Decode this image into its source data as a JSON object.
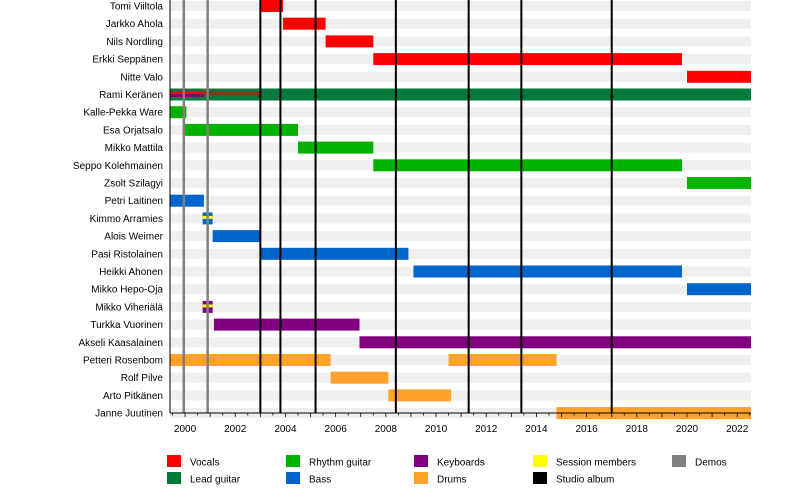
{
  "chart_data": {
    "type": "timeline",
    "x_range": [
      1999.4,
      2022.55
    ],
    "x_ticks": [
      2000,
      2002,
      2004,
      2006,
      2008,
      2010,
      2012,
      2014,
      2016,
      2018,
      2020,
      2022
    ],
    "x_tick_labels": [
      "2000",
      "2002",
      "2004",
      "2006",
      "2008",
      "2010",
      "2012",
      "2014",
      "2016",
      "2018",
      "2020",
      "2022"
    ],
    "colors": {
      "Vocals": "#ff0000",
      "Lead guitar": "#007a3d",
      "Rhythm guitar": "#00b200",
      "Bass": "#0066cc",
      "Keyboards": "#800080",
      "Drums": "#ffa12b",
      "Session members": "#ffff00",
      "Studio album": "#000000",
      "Demos": "#808080"
    },
    "members": [
      {
        "name": "Tomi Viiltola",
        "bars": [
          {
            "role": "Vocals",
            "start": 2003.0,
            "end": 2003.9
          }
        ]
      },
      {
        "name": "Jarkko Ahola",
        "bars": [
          {
            "role": "Vocals",
            "start": 2003.9,
            "end": 2005.6
          }
        ]
      },
      {
        "name": "Nils Nordling",
        "bars": [
          {
            "role": "Vocals",
            "start": 2005.6,
            "end": 2007.5
          }
        ]
      },
      {
        "name": "Erkki Seppänen",
        "bars": [
          {
            "role": "Vocals",
            "start": 2007.5,
            "end": 2019.8
          }
        ]
      },
      {
        "name": "Nitte Valo",
        "bars": [
          {
            "role": "Vocals",
            "start": 2020.0,
            "end": 2022.55
          }
        ]
      },
      {
        "name": "Rami Keränen",
        "bars": [
          {
            "role": "Lead guitar",
            "start": 1999.4,
            "end": 2022.55
          },
          {
            "role": "Vocals",
            "start": 1999.4,
            "end": 2000.75,
            "thin": true
          },
          {
            "role": "Vocals",
            "start": 2000.75,
            "end": 2003.0,
            "thin": true,
            "slim": true
          },
          {
            "role": "Keyboards",
            "start": 1999.4,
            "end": 2000.75,
            "thin": true,
            "offset": 2
          }
        ]
      },
      {
        "name": "Kalle-Pekka Ware",
        "bars": [
          {
            "role": "Rhythm guitar",
            "start": 1999.4,
            "end": 2000.05
          }
        ]
      },
      {
        "name": "Esa Orjatsalo",
        "bars": [
          {
            "role": "Rhythm guitar",
            "start": 1999.95,
            "end": 2004.5
          }
        ]
      },
      {
        "name": "Mikko Mattila",
        "bars": [
          {
            "role": "Rhythm guitar",
            "start": 2004.5,
            "end": 2007.5
          }
        ]
      },
      {
        "name": "Seppo Kolehmainen",
        "bars": [
          {
            "role": "Rhythm guitar",
            "start": 2007.5,
            "end": 2019.8
          }
        ]
      },
      {
        "name": "Zsolt Szilagyi",
        "bars": [
          {
            "role": "Rhythm guitar",
            "start": 2020.0,
            "end": 2022.55
          }
        ]
      },
      {
        "name": "Petri Laitinen",
        "bars": [
          {
            "role": "Bass",
            "start": 1999.4,
            "end": 2000.75
          }
        ]
      },
      {
        "name": "Kimmo Arramies",
        "bars": [
          {
            "role": "Bass",
            "start": 2000.7,
            "end": 2001.1
          },
          {
            "role": "Session members",
            "start": 2000.7,
            "end": 2001.1,
            "thin": true
          }
        ]
      },
      {
        "name": "Alois Weimer",
        "bars": [
          {
            "role": "Bass",
            "start": 2001.1,
            "end": 2003.0
          }
        ]
      },
      {
        "name": "Pasi Ristolainen",
        "bars": [
          {
            "role": "Bass",
            "start": 2003.0,
            "end": 2008.9
          }
        ]
      },
      {
        "name": "Heikki Ahonen",
        "bars": [
          {
            "role": "Bass",
            "start": 2009.1,
            "end": 2019.8
          }
        ]
      },
      {
        "name": "Mikko Hepo-Oja",
        "bars": [
          {
            "role": "Bass",
            "start": 2020.0,
            "end": 2022.55
          }
        ]
      },
      {
        "name": "Mikko Viheriälä",
        "bars": [
          {
            "role": "Keyboards",
            "start": 2000.7,
            "end": 2001.1
          },
          {
            "role": "Session members",
            "start": 2000.7,
            "end": 2001.1,
            "thin": true
          }
        ]
      },
      {
        "name": "Turkka Vuorinen",
        "bars": [
          {
            "role": "Keyboards",
            "start": 2001.15,
            "end": 2006.95
          }
        ]
      },
      {
        "name": "Akseli Kaasalainen",
        "bars": [
          {
            "role": "Keyboards",
            "start": 2006.95,
            "end": 2022.55
          }
        ]
      },
      {
        "name": "Petteri Rosenbom",
        "bars": [
          {
            "role": "Drums",
            "start": 1999.4,
            "end": 2005.8
          },
          {
            "role": "Drums",
            "start": 2010.5,
            "end": 2014.8
          }
        ]
      },
      {
        "name": "Rolf Pilve",
        "bars": [
          {
            "role": "Drums",
            "start": 2005.8,
            "end": 2008.1
          }
        ]
      },
      {
        "name": "Arto Pitkänen",
        "bars": [
          {
            "role": "Drums",
            "start": 2008.1,
            "end": 2010.6
          }
        ]
      },
      {
        "name": "Janne Juutinen",
        "bars": [
          {
            "role": "Drums",
            "start": 2014.8,
            "end": 2022.55
          }
        ]
      }
    ],
    "studio_albums": [
      2003.0,
      2003.8,
      2005.2,
      2008.4,
      2011.3,
      2013.4,
      2017.0
    ],
    "demos": [
      1999.95,
      2000.9
    ],
    "legend": {
      "placement": "bottom",
      "entries": [
        "Vocals",
        "Lead guitar",
        "Rhythm guitar",
        "Bass",
        "Keyboards",
        "Drums",
        "Session members",
        "Studio album",
        "Demos"
      ]
    }
  }
}
